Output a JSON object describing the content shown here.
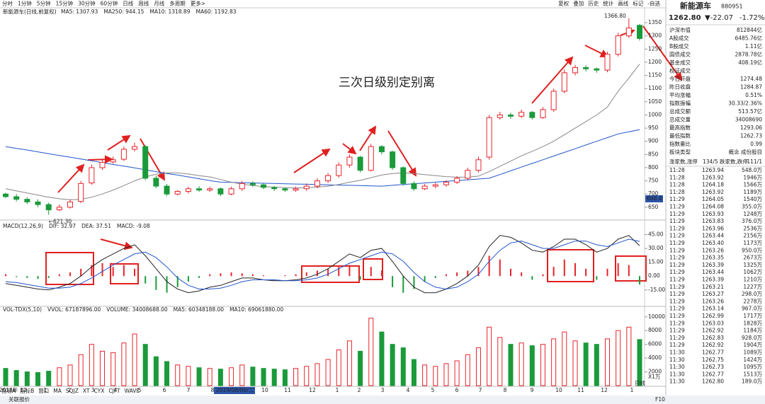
{
  "toolbar": {
    "periods": [
      "分时",
      "1分钟",
      "5分钟",
      "15分钟",
      "30分钟",
      "60分钟",
      "日线",
      "周线",
      "月线",
      "多周期",
      "更多>"
    ],
    "active": 6,
    "tools": [
      "复权",
      "叠加",
      "历史",
      "统计",
      "画线",
      "标记",
      "-自选"
    ]
  },
  "chart_data": [
    {
      "type": "candlestick",
      "title": "新能源车(日线,前复权)",
      "readouts": [
        {
          "label": "MA5: 1307.93",
          "color": "#333333"
        },
        {
          "label": "MA250: 944.15",
          "color": "#2155cc"
        },
        {
          "label": "MA10: 1318.89",
          "color": "#c08000"
        },
        {
          "label": "MA60: 1192.83",
          "color": "#888888"
        }
      ],
      "up_color": "#e8232a",
      "down_color": "#1a9a3a",
      "open": [
        700,
        690,
        680,
        670,
        660,
        640,
        650,
        672,
        742,
        800,
        822,
        832,
        870,
        880,
        760,
        730,
        700,
        710,
        720,
        715,
        720,
        700,
        720,
        740,
        735,
        725,
        720,
        715,
        720,
        730,
        750,
        770,
        810,
        840,
        790,
        880,
        860,
        800,
        740,
        720,
        730,
        735,
        745,
        760,
        790,
        840,
        990,
        1000,
        995,
        1010,
        990,
        1020,
        1090,
        1160,
        1180,
        1175,
        1170,
        1230,
        1300,
        1340
      ],
      "high": [
        705,
        700,
        688,
        680,
        668,
        660,
        680,
        750,
        812,
        830,
        842,
        880,
        895,
        885,
        770,
        738,
        715,
        728,
        730,
        728,
        725,
        728,
        750,
        748,
        740,
        730,
        725,
        728,
        740,
        760,
        780,
        820,
        850,
        845,
        890,
        885,
        865,
        805,
        748,
        738,
        742,
        752,
        768,
        800,
        842,
        1000,
        1012,
        1008,
        1020,
        1015,
        1030,
        1100,
        1172,
        1190,
        1188,
        1180,
        1240,
        1312,
        1366.8,
        1345
      ],
      "low": [
        685,
        672,
        662,
        650,
        621.3,
        635,
        645,
        665,
        735,
        792,
        815,
        825,
        862,
        752,
        722,
        692,
        695,
        702,
        708,
        708,
        692,
        695,
        712,
        728,
        718,
        712,
        708,
        708,
        712,
        722,
        742,
        762,
        800,
        782,
        785,
        850,
        792,
        732,
        712,
        715,
        722,
        728,
        738,
        752,
        782,
        830,
        982,
        985,
        988,
        982,
        985,
        1012,
        1082,
        1150,
        1165,
        1160,
        1162,
        1222,
        1292,
        1282
      ],
      "close": [
        690,
        680,
        670,
        660,
        640,
        650,
        670,
        740,
        800,
        820,
        830,
        870,
        880,
        760,
        730,
        700,
        710,
        720,
        715,
        720,
        700,
        720,
        740,
        735,
        725,
        720,
        715,
        720,
        730,
        750,
        770,
        810,
        840,
        790,
        880,
        860,
        800,
        740,
        720,
        730,
        735,
        745,
        760,
        790,
        830,
        990,
        1000,
        995,
        1010,
        990,
        1020,
        1090,
        1160,
        1180,
        1175,
        1170,
        1230,
        1300,
        1330,
        1290
      ],
      "series": [
        {
          "name": "MA250",
          "color": "#2155cc",
          "values": [
            880,
            873,
            867,
            860,
            853,
            846,
            840,
            833,
            826,
            819,
            812,
            806,
            799,
            792,
            785,
            778,
            772,
            765,
            758,
            751,
            745,
            744,
            743,
            742,
            741,
            740,
            739,
            738,
            737,
            736,
            735,
            734,
            733,
            732,
            731,
            730,
            733,
            736,
            739,
            742,
            745,
            748,
            751,
            754,
            757,
            760,
            774,
            788,
            802,
            816,
            830,
            844,
            858,
            872,
            886,
            900,
            914,
            928,
            936,
            944
          ]
        },
        {
          "name": "MA60",
          "color": "#888888",
          "values": [
            720,
            712,
            704,
            696,
            688,
            682,
            678,
            680,
            688,
            700,
            715,
            732,
            750,
            765,
            775,
            780,
            780,
            776,
            770,
            765,
            755,
            745,
            738,
            732,
            728,
            726,
            724,
            723,
            724,
            726,
            730,
            736,
            745,
            752,
            762,
            772,
            778,
            780,
            778,
            774,
            770,
            766,
            764,
            764,
            768,
            785,
            805,
            825,
            845,
            862,
            880,
            900,
            925,
            950,
            975,
            1000,
            1030,
            1090,
            1140,
            1193
          ]
        }
      ],
      "ylim": [
        604,
        1377
      ],
      "yticks": [
        650,
        700,
        750,
        800,
        850,
        900,
        950,
        1000,
        1050,
        1100,
        1150,
        1200,
        1250,
        1300,
        1350
      ],
      "max_label": "1366.80",
      "min_label": "←621.30",
      "last_marker": "668.4",
      "annotation": "三次日级别定别离"
    },
    {
      "type": "macd",
      "readouts": [
        {
          "label": "MACD(12,26,9)",
          "color": "#333333"
        },
        {
          "label": "DIF: 32.97",
          "color": "#333333"
        },
        {
          "label": "DEA: 37.51",
          "color": "#2155cc"
        },
        {
          "label": "MACD: -9.08",
          "color": "#c000c0"
        }
      ],
      "up_color": "#e8232a",
      "down_color": "#1a9a3a",
      "values": [
        2,
        -1,
        -2,
        -3,
        -2,
        2,
        4,
        8,
        12,
        14,
        10,
        12,
        8,
        -8,
        -15,
        -18,
        -12,
        -6,
        -2,
        2,
        3,
        4,
        3,
        2,
        1,
        0,
        1,
        2,
        4,
        6,
        8,
        10,
        12,
        -4,
        10,
        6,
        -12,
        -18,
        -14,
        -6,
        -2,
        2,
        4,
        6,
        10,
        22,
        18,
        8,
        4,
        -4,
        2,
        10,
        18,
        14,
        8,
        -4,
        8,
        14,
        12,
        -9.08
      ],
      "series": [
        {
          "name": "DIF",
          "color": "#222222",
          "values": [
            -8,
            -10,
            -12,
            -14,
            -15,
            -12,
            -8,
            0,
            10,
            18,
            24,
            30,
            34,
            22,
            8,
            -6,
            -14,
            -18,
            -16,
            -12,
            -10,
            -6,
            -2,
            -2,
            -4,
            -5,
            -5,
            -4,
            -2,
            2,
            8,
            16,
            24,
            20,
            28,
            30,
            16,
            0,
            -12,
            -18,
            -18,
            -14,
            -8,
            0,
            12,
            32,
            44,
            42,
            36,
            28,
            26,
            32,
            40,
            40,
            34,
            26,
            30,
            40,
            44,
            32.97
          ]
        },
        {
          "name": "DEA",
          "color": "#2155cc",
          "values": [
            -6,
            -7,
            -9,
            -11,
            -13,
            -13,
            -12,
            -8,
            -2,
            5,
            12,
            18,
            24,
            26,
            20,
            10,
            -2,
            -10,
            -14,
            -14,
            -13,
            -10,
            -6,
            -4,
            -4,
            -4,
            -5,
            -5,
            -4,
            -2,
            2,
            8,
            14,
            18,
            22,
            26,
            24,
            16,
            4,
            -6,
            -12,
            -14,
            -12,
            -6,
            2,
            16,
            28,
            36,
            38,
            34,
            30,
            30,
            34,
            38,
            38,
            34,
            32,
            36,
            40,
            37.51
          ]
        }
      ],
      "ylim": [
        -32,
        50
      ],
      "yticks": [
        {
          "value": -15,
          "label": "-15.00"
        },
        {
          "value": 0,
          "label": "0.00"
        },
        {
          "value": 15,
          "label": "15.00"
        },
        {
          "value": 30,
          "label": "30.00"
        },
        {
          "value": 45,
          "label": "45.00"
        }
      ]
    },
    {
      "type": "volume",
      "readouts": [
        {
          "label": "VOL-TDX(5,10)",
          "color": "#333333"
        },
        {
          "label": "VVOL: 67187896.00",
          "color": "#333333"
        },
        {
          "label": "VOLUME: 34008688.00",
          "color": "#2155cc"
        },
        {
          "label": "MA5: 60348188.00",
          "color": "#c08000"
        },
        {
          "label": "MA10: 69061880.00",
          "color": "#c000c0"
        }
      ],
      "values": [
        2500,
        2200,
        2000,
        1900,
        2100,
        2600,
        3000,
        4500,
        6000,
        5000,
        4800,
        6200,
        7500,
        6000,
        4200,
        3500,
        3000,
        2800,
        2600,
        2500,
        2400,
        2600,
        3000,
        2700,
        2500,
        2400,
        2300,
        2500,
        2800,
        3200,
        3800,
        5200,
        6500,
        5000,
        9800,
        7800,
        6000,
        5500,
        3800,
        3000,
        2800,
        3200,
        3600,
        4500,
        5500,
        8500,
        7000,
        6000,
        6200,
        5800,
        6000,
        6800,
        7800,
        6500,
        6200,
        6000,
        6800,
        8000,
        8500,
        6700
      ],
      "ylim": [
        0,
        10800
      ],
      "yticks": [
        2000,
        4000,
        6000,
        8000,
        10000
      ],
      "unit": "X1万",
      "x_labels": [
        "2018年",
        "12",
        "1",
        "2",
        "3",
        "4",
        "5",
        "6",
        "7",
        "8",
        "10",
        "11",
        "12",
        "1",
        "2",
        "3",
        "4",
        "5",
        "6",
        "7",
        "8",
        "9",
        "10",
        "11",
        "12",
        "1"
      ],
      "cursor_date": "2019/08/06/二",
      "period": "日线"
    }
  ],
  "quote_panel": {
    "name": "新能源车",
    "code": "880951",
    "price": "1262.80",
    "change": "▼-22.07",
    "pct": "-1.72%",
    "stats": [
      [
        "沪深市值",
        "812844亿"
      ],
      [
        "A股成交",
        "6485.76亿"
      ],
      [
        "B股成交",
        "1.11亿"
      ],
      [
        "国债成交",
        "2878.78亿"
      ],
      [
        "基金成交",
        "408.19亿"
      ],
      [
        "权证成交",
        null
      ],
      [
        "今日开盘",
        "1274.48"
      ],
      [
        "昨日收盘",
        "1284.87"
      ],
      [
        "平均涨幅",
        "0.51%"
      ],
      [
        "指数振幅",
        "30.33/2.36%"
      ],
      [
        "总成交额",
        "513.57亿"
      ],
      [
        "总成交量",
        "34008690"
      ],
      [
        "最高指数",
        "1293.06"
      ],
      [
        "最低指数",
        "1262.73"
      ],
      [
        "指数量比",
        "0.99"
      ],
      [
        "板块类型",
        "概念 成份股目"
      ]
    ],
    "breadth": [
      "涨家数,涨停",
      "134/5",
      "跌家数,跌停",
      "111/1"
    ],
    "ticks": [
      [
        "11:28",
        "1263.94",
        "548.0万"
      ],
      [
        "11:28",
        "1263.92",
        "1946万"
      ],
      [
        "11:28",
        "1264.18",
        "1566万"
      ],
      [
        "11:28",
        "1263.92",
        "1189万"
      ],
      [
        "11:29",
        "1264.05",
        "1540万"
      ],
      [
        "11:29",
        "1264.08",
        "355.0万"
      ],
      [
        "11:29",
        "1263.93",
        "1248万"
      ],
      [
        "11:29",
        "1263.83",
        "376.0万"
      ],
      [
        "11:29",
        "1263.96",
        "2536万"
      ],
      [
        "11:29",
        "1263.44",
        "2156万"
      ],
      [
        "11:29",
        "1263.40",
        "1173万"
      ],
      [
        "11:29",
        "1263.26",
        "950.0万"
      ],
      [
        "11:29",
        "1263.35",
        "2673万"
      ],
      [
        "11:29",
        "1263.39",
        "1325万"
      ],
      [
        "11:29",
        "1263.44",
        "1062万"
      ],
      [
        "11:29",
        "1263.39",
        "1210万"
      ],
      [
        "11:29",
        "1263.21",
        "1227万"
      ],
      [
        "11:29",
        "1263.27",
        "298.0万"
      ],
      [
        "11:29",
        "1263.26",
        "2278万"
      ],
      [
        "11:29",
        "1263.14",
        "967.0万"
      ],
      [
        "11:29",
        "1262.99",
        "1717万"
      ],
      [
        "11:29",
        "1263.03",
        "1828万"
      ],
      [
        "11:29",
        "1262.92",
        "1184万"
      ],
      [
        "11:29",
        "1262.83",
        "928.0万"
      ],
      [
        "11:29",
        "1262.92",
        "1904万"
      ],
      [
        "11:30",
        "1262.77",
        "1089万"
      ],
      [
        "11:30",
        "1262.75",
        "1424万"
      ],
      [
        "11:30",
        "1262.73",
        "1095万"
      ],
      [
        "11:30",
        "1262.77",
        "1513万"
      ],
      [
        "11:30",
        "1262.80",
        "189.0万"
      ]
    ]
  },
  "bottom_bar": {
    "tabs": [
      "指标A",
      "指标B",
      "窗口",
      "MA",
      "SQJZ",
      "XT",
      "CYX",
      "CJFT",
      "WAVE"
    ],
    "status": "关联报价",
    "f10": "F10"
  }
}
